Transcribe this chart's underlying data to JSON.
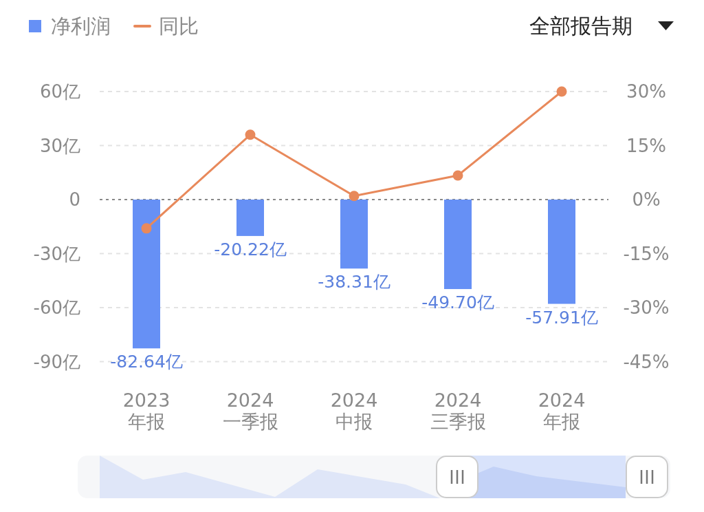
{
  "chart_data": {
    "type": "bar",
    "categories": [
      "2023\n年报",
      "2024\n一季报",
      "2024\n中报",
      "2024\n三季报",
      "2024\n年报"
    ],
    "series": [
      {
        "name": "净利润",
        "color": "#6690f5",
        "values": [
          -82.64,
          -20.22,
          -38.31,
          -49.7,
          -57.91
        ],
        "value_labels": [
          "-82.64亿",
          "-20.22亿",
          "-38.31亿",
          "-49.70亿",
          "-57.91亿"
        ]
      },
      {
        "name": "同比",
        "type": "line",
        "axis": "y2",
        "color": "#e8895b",
        "values": [
          -8.0,
          18.0,
          1.0,
          6.7,
          30.0
        ]
      }
    ],
    "ylim": [
      -90,
      60
    ],
    "yticks": [
      {
        "value": 60,
        "label": "60亿"
      },
      {
        "value": 30,
        "label": "30亿"
      },
      0,
      {
        "value": -30,
        "label": "-30亿"
      },
      {
        "value": -60,
        "label": "-60亿"
      },
      {
        "value": -90,
        "label": "-90亿"
      }
    ],
    "y2lim": [
      -45,
      30
    ],
    "y2ticks": [
      {
        "value": 30,
        "label": "30%"
      },
      {
        "value": 15,
        "label": "15%"
      },
      {
        "value": 0,
        "label": "0%"
      },
      {
        "value": -15,
        "label": "-15%"
      },
      {
        "value": -30,
        "label": "-30%"
      },
      {
        "value": -45,
        "label": "-45%"
      }
    ],
    "grid": "y",
    "ref_lines": [
      {
        "axis": "y",
        "value": 0,
        "color": "#888888",
        "line_style": "dotted"
      }
    ],
    "legend": "top left",
    "marker": "circle",
    "annotations": [
      "全部报告期"
    ]
  }
}
